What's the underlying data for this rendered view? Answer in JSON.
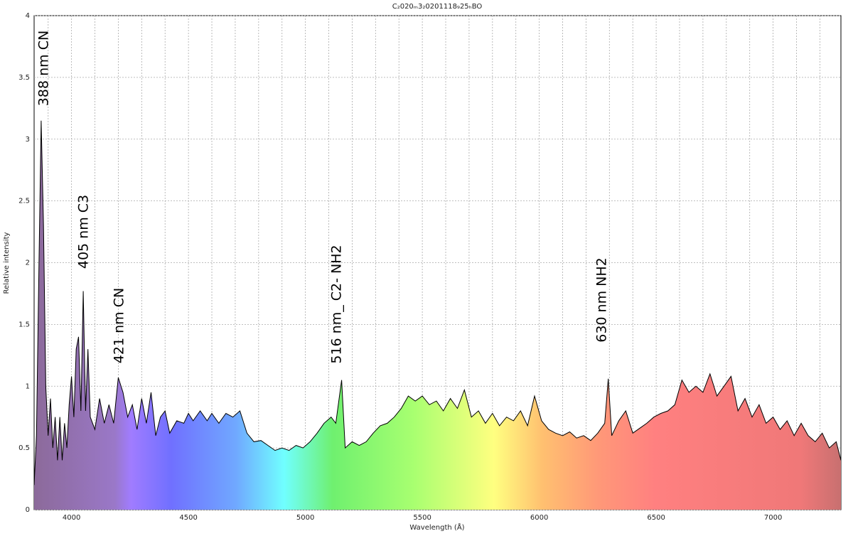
{
  "chart_data": {
    "type": "area",
    "title": "C₂020ₘ3₂0201118₉25ₕBO",
    "x_label": "Wavelength (Å)",
    "y_label": "Relative intensity",
    "color": "#000000",
    "grid": true,
    "xlim": [
      3840,
      7290
    ],
    "ylim": [
      0,
      4
    ],
    "xticks": [
      4000,
      4500,
      5000,
      5500,
      6000,
      6500,
      7000
    ],
    "xminorticks": [
      3900,
      4100,
      4200,
      4300,
      4400,
      4600,
      4700,
      4800,
      4900,
      5100,
      5200,
      5300,
      5400,
      5600,
      5700,
      5800,
      5900,
      6100,
      6200,
      6300,
      6400,
      6600,
      6700,
      6800,
      6900,
      7100,
      7200
    ],
    "yticks": [
      0,
      0.5,
      1,
      1.5,
      2,
      2.5,
      3,
      3.5,
      4
    ],
    "annotations": [
      "388 nm CN",
      "405 nm C3",
      "421 nm CN",
      "516 nm_ C2- NH2",
      "630 nm NH2"
    ],
    "x": [
      3840,
      3850,
      3860,
      3870,
      3880,
      3890,
      3900,
      3910,
      3920,
      3930,
      3940,
      3950,
      3960,
      3970,
      3980,
      3990,
      4000,
      4010,
      4020,
      4030,
      4040,
      4050,
      4060,
      4070,
      4080,
      4100,
      4120,
      4140,
      4160,
      4180,
      4200,
      4220,
      4240,
      4260,
      4280,
      4300,
      4320,
      4340,
      4360,
      4380,
      4400,
      4420,
      4450,
      4480,
      4500,
      4520,
      4550,
      4580,
      4600,
      4630,
      4660,
      4690,
      4720,
      4750,
      4780,
      4810,
      4840,
      4870,
      4900,
      4930,
      4960,
      4990,
      5020,
      5050,
      5080,
      5110,
      5130,
      5155,
      5170,
      5200,
      5230,
      5260,
      5290,
      5320,
      5350,
      5380,
      5410,
      5440,
      5470,
      5500,
      5530,
      5560,
      5590,
      5620,
      5650,
      5680,
      5710,
      5740,
      5770,
      5800,
      5830,
      5860,
      5890,
      5920,
      5950,
      5980,
      6010,
      6040,
      6070,
      6100,
      6130,
      6160,
      6190,
      6220,
      6250,
      6280,
      6295,
      6310,
      6340,
      6370,
      6400,
      6430,
      6460,
      6490,
      6520,
      6550,
      6580,
      6610,
      6640,
      6670,
      6700,
      6730,
      6760,
      6790,
      6820,
      6850,
      6880,
      6910,
      6940,
      6970,
      7000,
      7030,
      7060,
      7090,
      7120,
      7150,
      7180,
      7210,
      7240,
      7270,
      7290
    ],
    "values": [
      0.2,
      0.6,
      1.9,
      3.15,
      2.3,
      1.0,
      0.6,
      0.9,
      0.5,
      0.75,
      0.4,
      0.75,
      0.4,
      0.7,
      0.5,
      0.85,
      1.08,
      0.75,
      1.3,
      1.4,
      0.8,
      1.77,
      0.8,
      1.3,
      0.75,
      0.65,
      0.9,
      0.7,
      0.85,
      0.7,
      1.07,
      0.95,
      0.75,
      0.85,
      0.65,
      0.9,
      0.7,
      0.95,
      0.6,
      0.75,
      0.8,
      0.62,
      0.72,
      0.7,
      0.78,
      0.72,
      0.8,
      0.72,
      0.78,
      0.7,
      0.78,
      0.75,
      0.8,
      0.62,
      0.55,
      0.56,
      0.52,
      0.48,
      0.5,
      0.48,
      0.52,
      0.5,
      0.55,
      0.62,
      0.7,
      0.75,
      0.7,
      1.05,
      0.5,
      0.55,
      0.52,
      0.55,
      0.62,
      0.68,
      0.7,
      0.75,
      0.82,
      0.92,
      0.88,
      0.92,
      0.85,
      0.88,
      0.8,
      0.9,
      0.82,
      0.97,
      0.75,
      0.8,
      0.7,
      0.78,
      0.68,
      0.75,
      0.72,
      0.8,
      0.68,
      0.92,
      0.72,
      0.65,
      0.62,
      0.6,
      0.63,
      0.58,
      0.6,
      0.56,
      0.62,
      0.7,
      1.06,
      0.6,
      0.72,
      0.8,
      0.62,
      0.66,
      0.7,
      0.75,
      0.78,
      0.8,
      0.85,
      1.05,
      0.95,
      1.0,
      0.95,
      1.1,
      0.92,
      1.0,
      1.08,
      0.8,
      0.9,
      0.75,
      0.85,
      0.7,
      0.75,
      0.65,
      0.72,
      0.6,
      0.7,
      0.6,
      0.55,
      0.62,
      0.5,
      0.55,
      0.4
    ]
  }
}
